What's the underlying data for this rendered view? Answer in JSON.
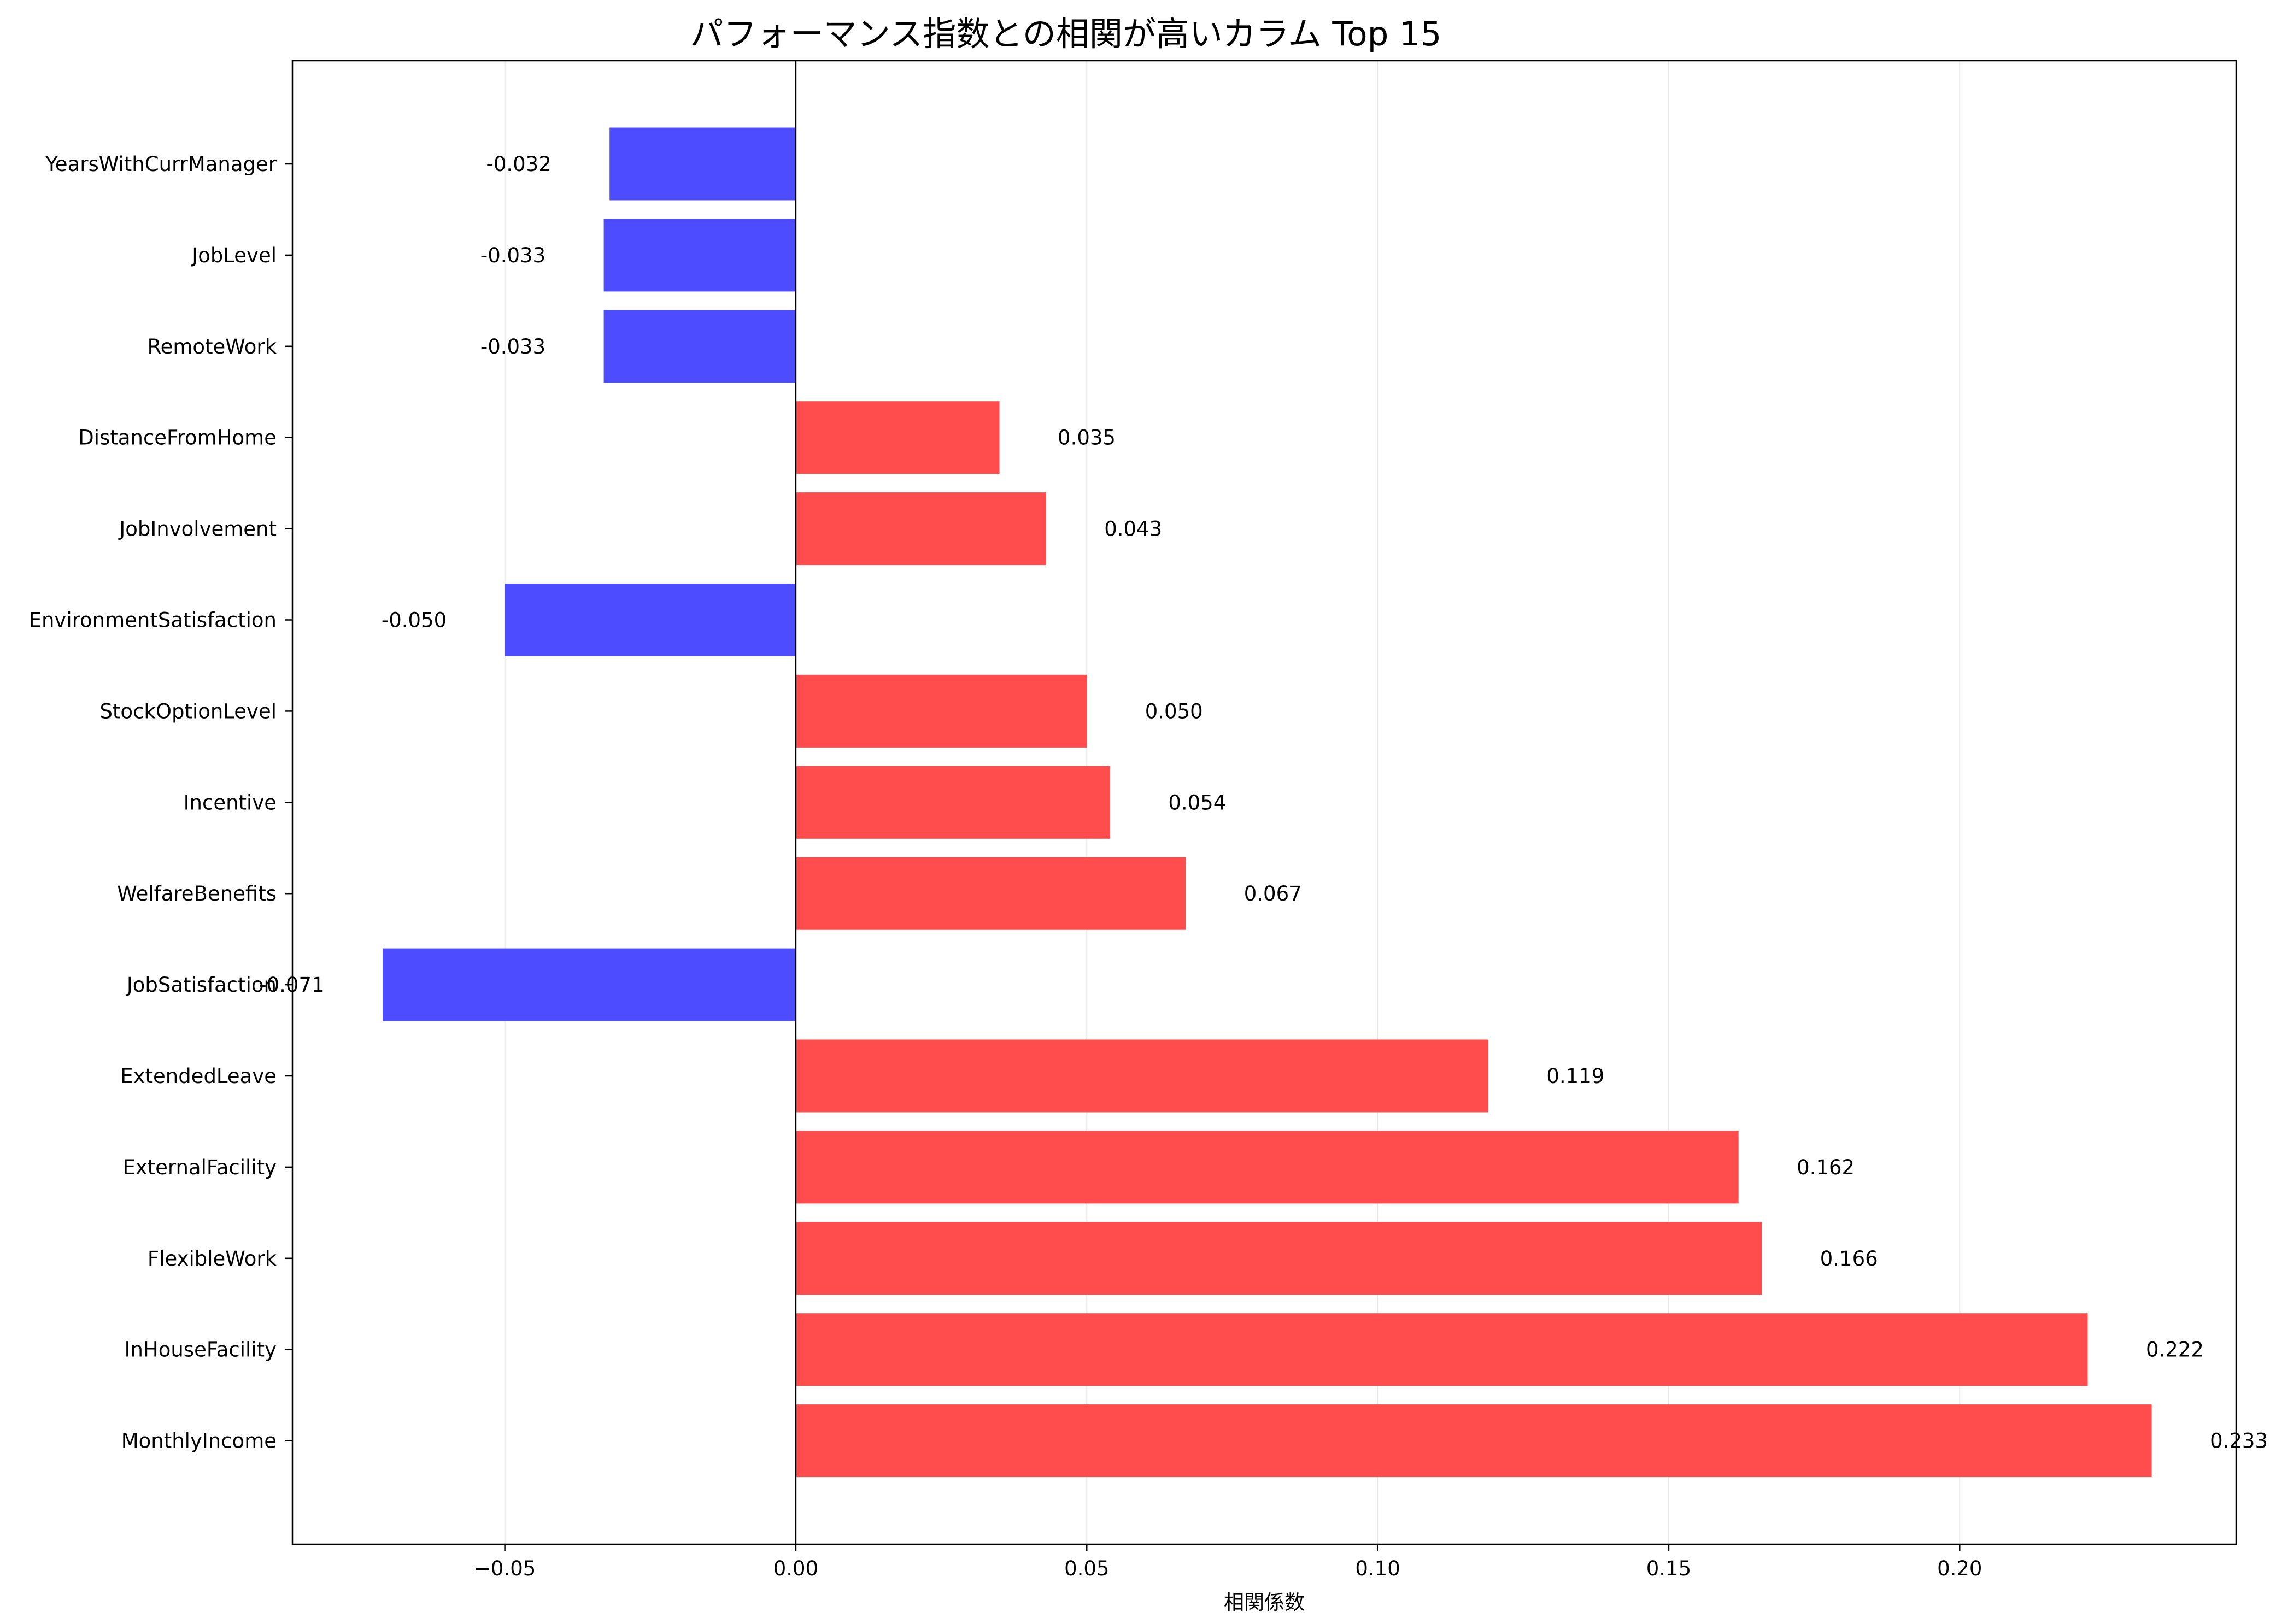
{
  "chart_data": {
    "type": "bar",
    "orientation": "horizontal",
    "title": "パフォーマンス指数との相関が高いカラム Top 15",
    "xlabel": "相関係数",
    "ylabel": "",
    "xlim": [
      -0.0865,
      0.2475
    ],
    "xticks": [
      -0.05,
      0.0,
      0.05,
      0.1,
      0.15,
      0.2
    ],
    "xtick_labels": [
      "−0.05",
      "0.00",
      "0.05",
      "0.10",
      "0.15",
      "0.20"
    ],
    "grid": "x",
    "categories": [
      "YearsWithCurrManager",
      "JobLevel",
      "RemoteWork",
      "DistanceFromHome",
      "JobInvolvement",
      "EnvironmentSatisfaction",
      "StockOptionLevel",
      "Incentive",
      "WelfareBenefits",
      "JobSatisfaction",
      "ExtendedLeave",
      "ExternalFacility",
      "FlexibleWork",
      "InHouseFacility",
      "MonthlyIncome"
    ],
    "values": [
      -0.032,
      -0.033,
      -0.033,
      0.035,
      0.043,
      -0.05,
      0.05,
      0.054,
      0.067,
      -0.071,
      0.119,
      0.162,
      0.166,
      0.222,
      0.233
    ],
    "value_labels": [
      "-0.032",
      "-0.033",
      "-0.033",
      "0.035",
      "0.043",
      "-0.050",
      "0.050",
      "0.054",
      "0.067",
      "-0.071",
      "0.119",
      "0.162",
      "0.166",
      "0.222",
      "0.233"
    ],
    "colors": {
      "positive": "#ff4d4d",
      "negative": "#4d4dff"
    }
  }
}
